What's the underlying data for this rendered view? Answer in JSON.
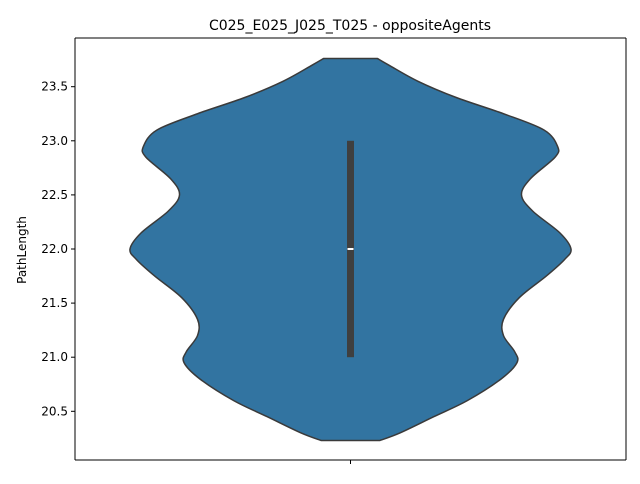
{
  "chart_data": {
    "type": "violin",
    "title": "C025_E025_J025_T025 - oppositeAgents",
    "xlabel": "",
    "ylabel": "PathLength",
    "y_ticks": [
      20.5,
      21.0,
      21.5,
      22.0,
      22.5,
      23.0,
      23.5
    ],
    "y_tick_labels": [
      "20.5",
      "21.0",
      "21.5",
      "22.0",
      "22.5",
      "23.0",
      "23.5"
    ],
    "ylim": [
      20.05,
      23.95
    ],
    "x_ticks": [
      ""
    ],
    "grid": false,
    "series": [
      {
        "color": "#3274a1",
        "outline_color": "#3a3a3a",
        "min": 20.23,
        "max": 23.76,
        "q1": 21.0,
        "median": 22.0,
        "q3": 23.0,
        "density_profile": [
          [
            20.23,
            0.13
          ],
          [
            20.3,
            0.22
          ],
          [
            20.45,
            0.37
          ],
          [
            20.6,
            0.52
          ],
          [
            20.8,
            0.67
          ],
          [
            20.95,
            0.74
          ],
          [
            21.05,
            0.73
          ],
          [
            21.2,
            0.68
          ],
          [
            21.35,
            0.68
          ],
          [
            21.55,
            0.75
          ],
          [
            21.75,
            0.87
          ],
          [
            21.9,
            0.95
          ],
          [
            22.0,
            0.98
          ],
          [
            22.15,
            0.93
          ],
          [
            22.35,
            0.81
          ],
          [
            22.5,
            0.76
          ],
          [
            22.65,
            0.8
          ],
          [
            22.85,
            0.91
          ],
          [
            22.95,
            0.92
          ],
          [
            23.1,
            0.86
          ],
          [
            23.25,
            0.68
          ],
          [
            23.4,
            0.47
          ],
          [
            23.55,
            0.3
          ],
          [
            23.7,
            0.17
          ],
          [
            23.76,
            0.12
          ]
        ]
      }
    ]
  }
}
